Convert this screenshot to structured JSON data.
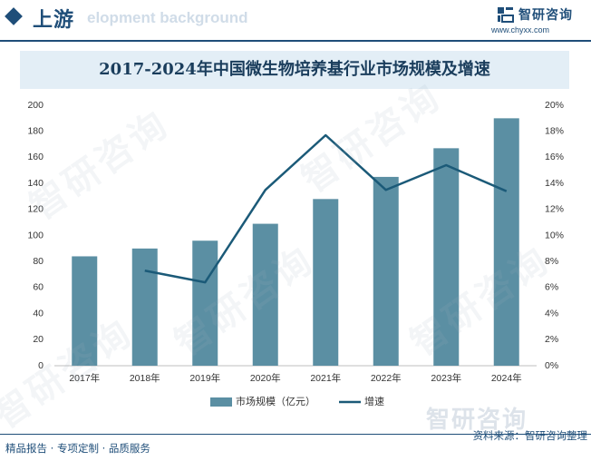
{
  "header": {
    "section_title": "上游",
    "ghost_text": "elopment background",
    "brand_name": "智研咨询",
    "brand_url": "www.chyxx.com"
  },
  "watermark": "智研咨询",
  "footer": {
    "left_text": "精品报告 · 专项定制 · 品质服务",
    "right_text": "资料来源：智研咨询整理",
    "watermark": "智研咨询"
  },
  "chart_data": {
    "type": "bar",
    "title": "2017-2024年中国微生物培养基行业市场规模及增速",
    "categories": [
      "2017年",
      "2018年",
      "2019年",
      "2020年",
      "2021年",
      "2022年",
      "2023年",
      "2024年"
    ],
    "series": [
      {
        "name": "市场规模（亿元）",
        "type": "bar",
        "axis": "left",
        "values": [
          84,
          90,
          96,
          109,
          128,
          145,
          167,
          190
        ]
      },
      {
        "name": "增速",
        "type": "line",
        "axis": "right",
        "values": [
          null,
          7.3,
          6.4,
          13.5,
          17.7,
          13.5,
          15.4,
          13.4
        ]
      }
    ],
    "y_left": {
      "min": 0,
      "max": 200,
      "ticks": [
        "0",
        "20",
        "40",
        "60",
        "80",
        "100",
        "120",
        "140",
        "160",
        "180",
        "200"
      ]
    },
    "y_right": {
      "min": 0,
      "max": 20,
      "ticks": [
        "0%",
        "2%",
        "4%",
        "6%",
        "8%",
        "10%",
        "12%",
        "14%",
        "16%",
        "18%",
        "20%"
      ]
    },
    "colors": {
      "bar": "#5b8fa3",
      "line": "#1b5a78"
    },
    "legend_position": "bottom",
    "grid": false
  }
}
